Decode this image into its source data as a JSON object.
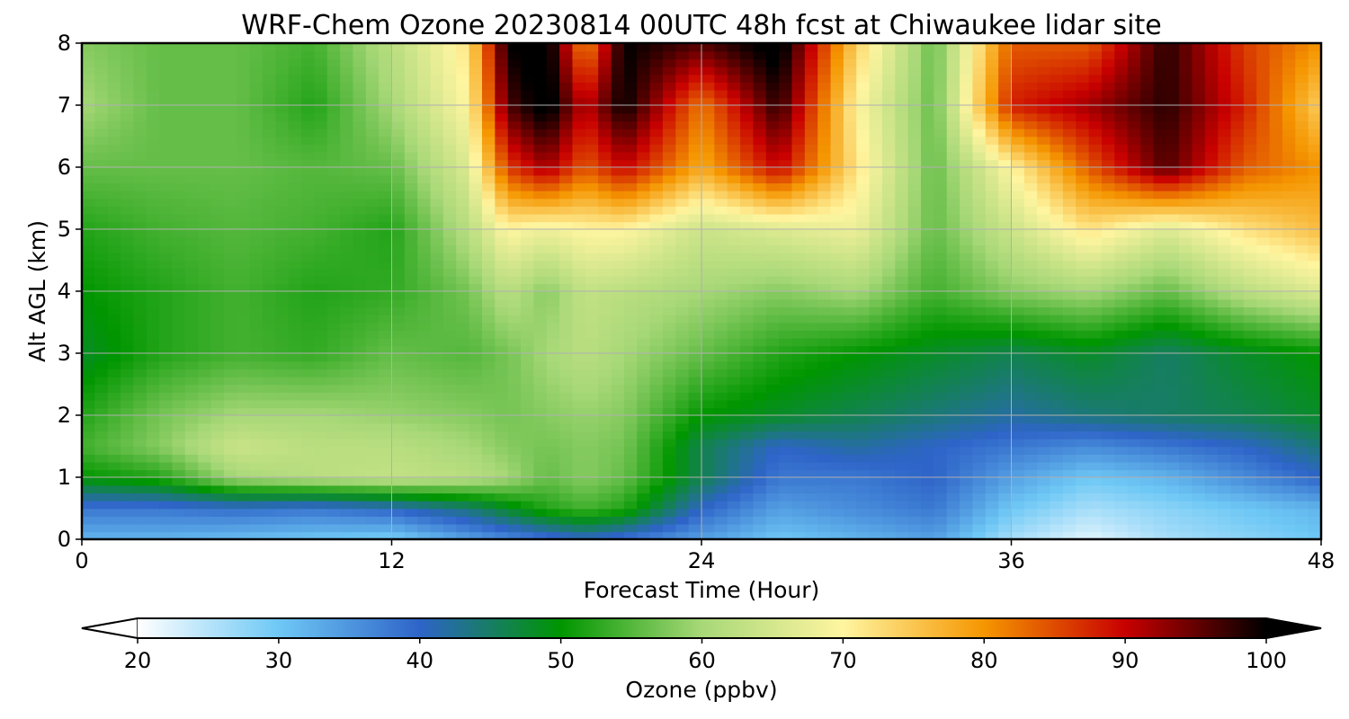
{
  "chart_data": {
    "type": "heatmap",
    "title": "WRF-Chem Ozone  20230814 00UTC 48h fcst at Chiwaukee lidar site",
    "xlabel": "Forecast Time (Hour)",
    "ylabel": "Alt AGL (km)",
    "xlim": [
      0,
      48
    ],
    "ylim": [
      0,
      8
    ],
    "xticks": [
      0,
      12,
      24,
      36,
      48
    ],
    "yticks": [
      0,
      1,
      2,
      3,
      4,
      5,
      6,
      7,
      8
    ],
    "grid": true,
    "colorbar": {
      "label": "Ozone  (ppbv)",
      "range": [
        20,
        100
      ],
      "ticks": [
        20,
        30,
        40,
        50,
        60,
        70,
        80,
        90,
        100
      ],
      "extend": "both",
      "orientation": "horizontal",
      "position": "bottom",
      "colors": [
        "#ffffff",
        "#6ec8f5",
        "#2e64c8",
        "#009600",
        "#a8d878",
        "#fff5a0",
        "#f59600",
        "#c80000",
        "#000000"
      ]
    },
    "time_hours": [
      0,
      3,
      6,
      9,
      12,
      15,
      16.5,
      18,
      19.5,
      21,
      24,
      27,
      30,
      33,
      36,
      39,
      42,
      45,
      48
    ],
    "altitudes_km": [
      0,
      0.5,
      1,
      1.5,
      2,
      3,
      4,
      5,
      6,
      7,
      8
    ],
    "ozone_ppbv": [
      [
        32,
        32,
        31,
        30,
        29,
        34,
        36,
        38,
        40,
        38,
        34,
        30,
        32,
        34,
        26,
        22,
        26,
        28,
        30
      ],
      [
        38,
        38,
        39,
        38,
        40,
        44,
        48,
        52,
        54,
        52,
        40,
        34,
        36,
        38,
        30,
        26,
        28,
        30,
        32
      ],
      [
        50,
        52,
        60,
        62,
        63,
        62,
        60,
        56,
        58,
        56,
        46,
        38,
        38,
        40,
        34,
        30,
        32,
        36,
        40
      ],
      [
        54,
        58,
        64,
        62,
        62,
        60,
        58,
        57,
        58,
        57,
        46,
        40,
        42,
        40,
        38,
        36,
        38,
        40,
        44
      ],
      [
        52,
        57,
        60,
        60,
        59,
        58,
        57,
        58,
        59,
        58,
        50,
        48,
        46,
        44,
        42,
        44,
        45,
        46,
        48
      ],
      [
        48,
        52,
        54,
        53,
        56,
        55,
        57,
        60,
        62,
        60,
        56,
        52,
        50,
        48,
        46,
        48,
        45,
        48,
        50
      ],
      [
        50,
        52,
        54,
        52,
        53,
        57,
        62,
        58,
        63,
        62,
        60,
        58,
        60,
        54,
        58,
        60,
        56,
        62,
        66
      ],
      [
        52,
        54,
        55,
        54,
        52,
        62,
        70,
        68,
        70,
        70,
        64,
        66,
        68,
        56,
        64,
        72,
        66,
        72,
        76
      ],
      [
        56,
        56,
        56,
        55,
        56,
        66,
        86,
        92,
        84,
        90,
        78,
        90,
        72,
        56,
        70,
        84,
        96,
        84,
        80
      ],
      [
        60,
        56,
        56,
        52,
        60,
        70,
        96,
        102,
        90,
        100,
        82,
        98,
        70,
        56,
        88,
        92,
        98,
        88,
        74
      ],
      [
        58,
        56,
        56,
        54,
        62,
        72,
        100,
        102,
        80,
        100,
        96,
        102,
        74,
        56,
        84,
        84,
        98,
        86,
        80
      ]
    ]
  }
}
